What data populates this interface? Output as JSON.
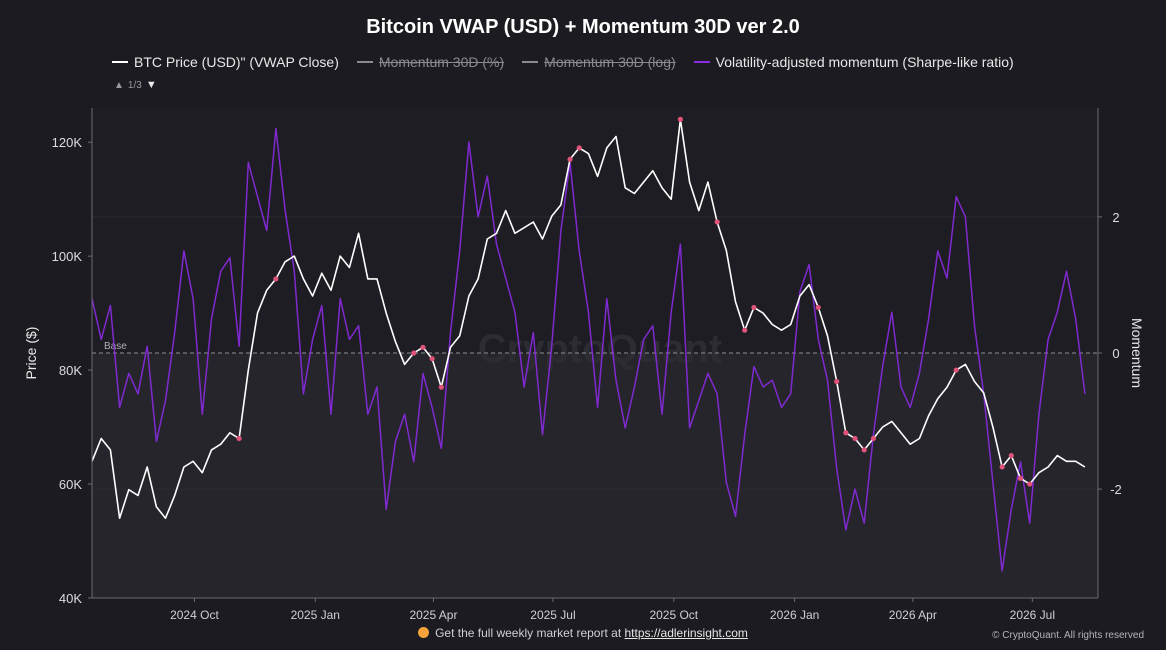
{
  "chart_data": {
    "type": "line",
    "title": "Bitcoin VWAP (USD) + Momentum 30D ver 2.0",
    "legend": [
      {
        "label": "BTC Price (USD)\" (VWAP Close)",
        "color": "#ffffff",
        "visible": true
      },
      {
        "label": "Momentum 30D (%)",
        "color": "#8a8a90",
        "visible": false
      },
      {
        "label": "Momentum 30D (log)",
        "color": "#8a8a90",
        "visible": false
      },
      {
        "label": "Volatility-adjusted momentum (Sharpe-like ratio)",
        "color": "#8a2be2",
        "visible": true
      }
    ],
    "legend_pager": "1/3",
    "xlabel": "",
    "x_ticks": [
      "2024 Oct",
      "2025 Jan",
      "2025 Apr",
      "2025 Jul",
      "2025 Oct",
      "2026 Jan",
      "2026 Apr",
      "2026 Jul"
    ],
    "x_range": [
      "2024-07-15",
      "2026-08-20"
    ],
    "y_left": {
      "label": "Price ($)",
      "ticks": [
        "40K",
        "60K",
        "80K",
        "100K",
        "120K"
      ],
      "range": [
        40000,
        126000
      ]
    },
    "y_right": {
      "label": "Momentum",
      "ticks": [
        "2",
        "0",
        "-2"
      ],
      "range": [
        -3.6,
        3.6
      ]
    },
    "baseline_label": "Base",
    "watermark": "CryptoQuant",
    "series": [
      {
        "name": "BTC Price (USD)\" (VWAP Close)",
        "axis": "left",
        "color": "#ffffff",
        "points": [
          [
            "2024-07-15",
            64000
          ],
          [
            "2024-07-22",
            68000
          ],
          [
            "2024-07-29",
            66000
          ],
          [
            "2024-08-05",
            54000
          ],
          [
            "2024-08-12",
            59000
          ],
          [
            "2024-08-19",
            58000
          ],
          [
            "2024-08-26",
            63000
          ],
          [
            "2024-09-02",
            56000
          ],
          [
            "2024-09-09",
            54000
          ],
          [
            "2024-09-16",
            58000
          ],
          [
            "2024-09-23",
            63000
          ],
          [
            "2024-09-30",
            64000
          ],
          [
            "2024-10-07",
            62000
          ],
          [
            "2024-10-14",
            66000
          ],
          [
            "2024-10-21",
            67000
          ],
          [
            "2024-10-28",
            69000
          ],
          [
            "2024-11-04",
            68000
          ],
          [
            "2024-11-11",
            80000
          ],
          [
            "2024-11-18",
            90000
          ],
          [
            "2024-11-25",
            94000
          ],
          [
            "2024-12-02",
            96000
          ],
          [
            "2024-12-09",
            99000
          ],
          [
            "2024-12-16",
            100000
          ],
          [
            "2024-12-23",
            96000
          ],
          [
            "2024-12-30",
            93000
          ],
          [
            "2025-01-06",
            97000
          ],
          [
            "2025-01-13",
            94000
          ],
          [
            "2025-01-20",
            100000
          ],
          [
            "2025-01-27",
            98000
          ],
          [
            "2025-02-03",
            104000
          ],
          [
            "2025-02-10",
            96000
          ],
          [
            "2025-02-17",
            96000
          ],
          [
            "2025-02-24",
            90000
          ],
          [
            "2025-03-03",
            85000
          ],
          [
            "2025-03-10",
            81000
          ],
          [
            "2025-03-17",
            83000
          ],
          [
            "2025-03-24",
            84000
          ],
          [
            "2025-03-31",
            82000
          ],
          [
            "2025-04-07",
            77000
          ],
          [
            "2025-04-14",
            84000
          ],
          [
            "2025-04-21",
            86000
          ],
          [
            "2025-04-28",
            93000
          ],
          [
            "2025-05-05",
            96000
          ],
          [
            "2025-05-12",
            103000
          ],
          [
            "2025-05-19",
            104000
          ],
          [
            "2025-05-26",
            108000
          ],
          [
            "2025-06-02",
            104000
          ],
          [
            "2025-06-09",
            105000
          ],
          [
            "2025-06-16",
            106000
          ],
          [
            "2025-06-23",
            103000
          ],
          [
            "2025-06-30",
            107000
          ],
          [
            "2025-07-07",
            109000
          ],
          [
            "2025-07-14",
            117000
          ],
          [
            "2025-07-21",
            119000
          ],
          [
            "2025-07-28",
            118000
          ],
          [
            "2025-08-04",
            114000
          ],
          [
            "2025-08-11",
            119000
          ],
          [
            "2025-08-18",
            121000
          ],
          [
            "2025-08-25",
            112000
          ],
          [
            "2025-09-01",
            111000
          ],
          [
            "2025-09-08",
            113000
          ],
          [
            "2025-09-15",
            115000
          ],
          [
            "2025-09-22",
            112000
          ],
          [
            "2025-09-29",
            110000
          ],
          [
            "2025-10-06",
            124000
          ],
          [
            "2025-10-13",
            113000
          ],
          [
            "2025-10-20",
            108000
          ],
          [
            "2025-10-27",
            113000
          ],
          [
            "2025-11-03",
            106000
          ],
          [
            "2025-11-10",
            101000
          ],
          [
            "2025-11-17",
            92000
          ],
          [
            "2025-11-24",
            87000
          ],
          [
            "2025-12-01",
            91000
          ],
          [
            "2025-12-08",
            90000
          ],
          [
            "2025-12-15",
            88000
          ],
          [
            "2025-12-22",
            87000
          ],
          [
            "2025-12-29",
            88000
          ],
          [
            "2026-01-05",
            93000
          ],
          [
            "2026-01-12",
            95000
          ],
          [
            "2026-01-19",
            91000
          ],
          [
            "2026-01-26",
            86000
          ],
          [
            "2026-02-02",
            78000
          ],
          [
            "2026-02-09",
            69000
          ],
          [
            "2026-02-16",
            68000
          ],
          [
            "2026-02-23",
            66000
          ],
          [
            "2026-03-02",
            68000
          ],
          [
            "2026-03-09",
            70000
          ],
          [
            "2026-03-16",
            71000
          ],
          [
            "2026-03-23",
            69000
          ],
          [
            "2026-03-30",
            67000
          ],
          [
            "2026-04-06",
            68000
          ],
          [
            "2026-04-13",
            72000
          ],
          [
            "2026-04-20",
            75000
          ],
          [
            "2026-04-27",
            77000
          ],
          [
            "2026-05-04",
            80000
          ],
          [
            "2026-05-11",
            81000
          ],
          [
            "2026-05-18",
            78000
          ],
          [
            "2026-05-25",
            76000
          ],
          [
            "2026-06-01",
            70000
          ],
          [
            "2026-06-08",
            63000
          ],
          [
            "2026-06-15",
            65000
          ],
          [
            "2026-06-22",
            61000
          ],
          [
            "2026-06-29",
            60000
          ],
          [
            "2026-07-06",
            62000
          ],
          [
            "2026-07-13",
            63000
          ],
          [
            "2026-07-20",
            65000
          ],
          [
            "2026-07-27",
            64000
          ],
          [
            "2026-08-03",
            64000
          ],
          [
            "2026-08-10",
            63000
          ]
        ]
      },
      {
        "name": "Volatility-adjusted momentum (Sharpe-like ratio)",
        "axis": "right",
        "color": "#8a2be2",
        "points": [
          [
            "2024-07-15",
            0.8
          ],
          [
            "2024-07-22",
            0.2
          ],
          [
            "2024-07-29",
            0.7
          ],
          [
            "2024-08-05",
            -0.8
          ],
          [
            "2024-08-12",
            -0.3
          ],
          [
            "2024-08-19",
            -0.6
          ],
          [
            "2024-08-26",
            0.1
          ],
          [
            "2024-09-02",
            -1.3
          ],
          [
            "2024-09-09",
            -0.7
          ],
          [
            "2024-09-16",
            0.3
          ],
          [
            "2024-09-23",
            1.5
          ],
          [
            "2024-09-30",
            0.8
          ],
          [
            "2024-10-07",
            -0.9
          ],
          [
            "2024-10-14",
            0.5
          ],
          [
            "2024-10-21",
            1.2
          ],
          [
            "2024-10-28",
            1.4
          ],
          [
            "2024-11-04",
            0.1
          ],
          [
            "2024-11-11",
            2.8
          ],
          [
            "2024-11-18",
            2.3
          ],
          [
            "2024-11-25",
            1.8
          ],
          [
            "2024-12-02",
            3.3
          ],
          [
            "2024-12-09",
            2.1
          ],
          [
            "2024-12-16",
            1.2
          ],
          [
            "2024-12-23",
            -0.6
          ],
          [
            "2024-12-30",
            0.2
          ],
          [
            "2025-01-06",
            0.7
          ],
          [
            "2025-01-13",
            -0.9
          ],
          [
            "2025-01-20",
            0.8
          ],
          [
            "2025-01-27",
            0.2
          ],
          [
            "2025-02-03",
            0.4
          ],
          [
            "2025-02-10",
            -0.9
          ],
          [
            "2025-02-17",
            -0.5
          ],
          [
            "2025-02-24",
            -2.3
          ],
          [
            "2025-03-03",
            -1.3
          ],
          [
            "2025-03-10",
            -0.9
          ],
          [
            "2025-03-17",
            -1.6
          ],
          [
            "2025-03-24",
            -0.3
          ],
          [
            "2025-03-31",
            -0.8
          ],
          [
            "2025-04-07",
            -1.4
          ],
          [
            "2025-04-14",
            0.3
          ],
          [
            "2025-04-21",
            1.5
          ],
          [
            "2025-04-28",
            3.1
          ],
          [
            "2025-05-05",
            2.0
          ],
          [
            "2025-05-12",
            2.6
          ],
          [
            "2025-05-19",
            1.6
          ],
          [
            "2025-05-26",
            1.1
          ],
          [
            "2025-06-02",
            0.6
          ],
          [
            "2025-06-09",
            -0.5
          ],
          [
            "2025-06-16",
            0.3
          ],
          [
            "2025-06-23",
            -1.2
          ],
          [
            "2025-06-30",
            0.1
          ],
          [
            "2025-07-07",
            1.8
          ],
          [
            "2025-07-14",
            2.8
          ],
          [
            "2025-07-21",
            1.5
          ],
          [
            "2025-07-28",
            0.6
          ],
          [
            "2025-08-04",
            -0.8
          ],
          [
            "2025-08-11",
            0.8
          ],
          [
            "2025-08-18",
            -0.4
          ],
          [
            "2025-08-25",
            -1.1
          ],
          [
            "2025-09-01",
            -0.5
          ],
          [
            "2025-09-08",
            0.2
          ],
          [
            "2025-09-15",
            0.4
          ],
          [
            "2025-09-22",
            -0.9
          ],
          [
            "2025-09-29",
            0.6
          ],
          [
            "2025-10-06",
            1.6
          ],
          [
            "2025-10-13",
            -1.1
          ],
          [
            "2025-10-20",
            -0.7
          ],
          [
            "2025-10-27",
            -0.3
          ],
          [
            "2025-11-03",
            -0.6
          ],
          [
            "2025-11-10",
            -1.9
          ],
          [
            "2025-11-17",
            -2.4
          ],
          [
            "2025-11-24",
            -1.2
          ],
          [
            "2025-12-01",
            -0.2
          ],
          [
            "2025-12-08",
            -0.5
          ],
          [
            "2025-12-15",
            -0.4
          ],
          [
            "2025-12-22",
            -0.8
          ],
          [
            "2025-12-29",
            -0.6
          ],
          [
            "2026-01-05",
            0.9
          ],
          [
            "2026-01-12",
            1.3
          ],
          [
            "2026-01-19",
            0.2
          ],
          [
            "2026-01-26",
            -0.4
          ],
          [
            "2026-02-02",
            -1.7
          ],
          [
            "2026-02-09",
            -2.6
          ],
          [
            "2026-02-16",
            -2.0
          ],
          [
            "2026-02-23",
            -2.5
          ],
          [
            "2026-03-02",
            -1.2
          ],
          [
            "2026-03-09",
            -0.2
          ],
          [
            "2026-03-16",
            0.6
          ],
          [
            "2026-03-23",
            -0.5
          ],
          [
            "2026-03-30",
            -0.8
          ],
          [
            "2026-04-06",
            -0.3
          ],
          [
            "2026-04-13",
            0.5
          ],
          [
            "2026-04-20",
            1.5
          ],
          [
            "2026-04-27",
            1.1
          ],
          [
            "2026-05-04",
            2.3
          ],
          [
            "2026-05-11",
            2.0
          ],
          [
            "2026-05-18",
            0.4
          ],
          [
            "2026-05-25",
            -0.6
          ],
          [
            "2026-06-01",
            -1.9
          ],
          [
            "2026-06-08",
            -3.2
          ],
          [
            "2026-06-15",
            -2.3
          ],
          [
            "2026-06-22",
            -1.6
          ],
          [
            "2026-06-29",
            -2.5
          ],
          [
            "2026-07-06",
            -0.9
          ],
          [
            "2026-07-13",
            0.2
          ],
          [
            "2026-07-20",
            0.6
          ],
          [
            "2026-07-27",
            1.2
          ],
          [
            "2026-08-03",
            0.5
          ],
          [
            "2026-08-10",
            -0.6
          ]
        ]
      }
    ],
    "highlight_color": "#e0537a",
    "highlights": [
      [
        "2024-11-04",
        68000
      ],
      [
        "2024-12-02",
        96000
      ],
      [
        "2025-03-17",
        83000
      ],
      [
        "2025-03-24",
        84000
      ],
      [
        "2025-03-31",
        82000
      ],
      [
        "2025-04-07",
        77000
      ],
      [
        "2025-07-14",
        117000
      ],
      [
        "2025-07-21",
        119000
      ],
      [
        "2025-10-06",
        124000
      ],
      [
        "2025-11-03",
        106000
      ],
      [
        "2025-11-24",
        87000
      ],
      [
        "2025-12-01",
        91000
      ],
      [
        "2026-01-19",
        91000
      ],
      [
        "2026-02-02",
        78000
      ],
      [
        "2026-02-09",
        69000
      ],
      [
        "2026-02-16",
        68000
      ],
      [
        "2026-02-23",
        66000
      ],
      [
        "2026-03-02",
        68000
      ],
      [
        "2026-05-04",
        80000
      ],
      [
        "2026-06-08",
        63000
      ],
      [
        "2026-06-15",
        65000
      ],
      [
        "2026-06-22",
        61000
      ],
      [
        "2026-06-29",
        60000
      ]
    ]
  },
  "footer": {
    "note_prefix": "Get the full weekly market report at",
    "note_link": "https://adlerinsight.com",
    "copyright": "© CryptoQuant. All rights reserved"
  }
}
